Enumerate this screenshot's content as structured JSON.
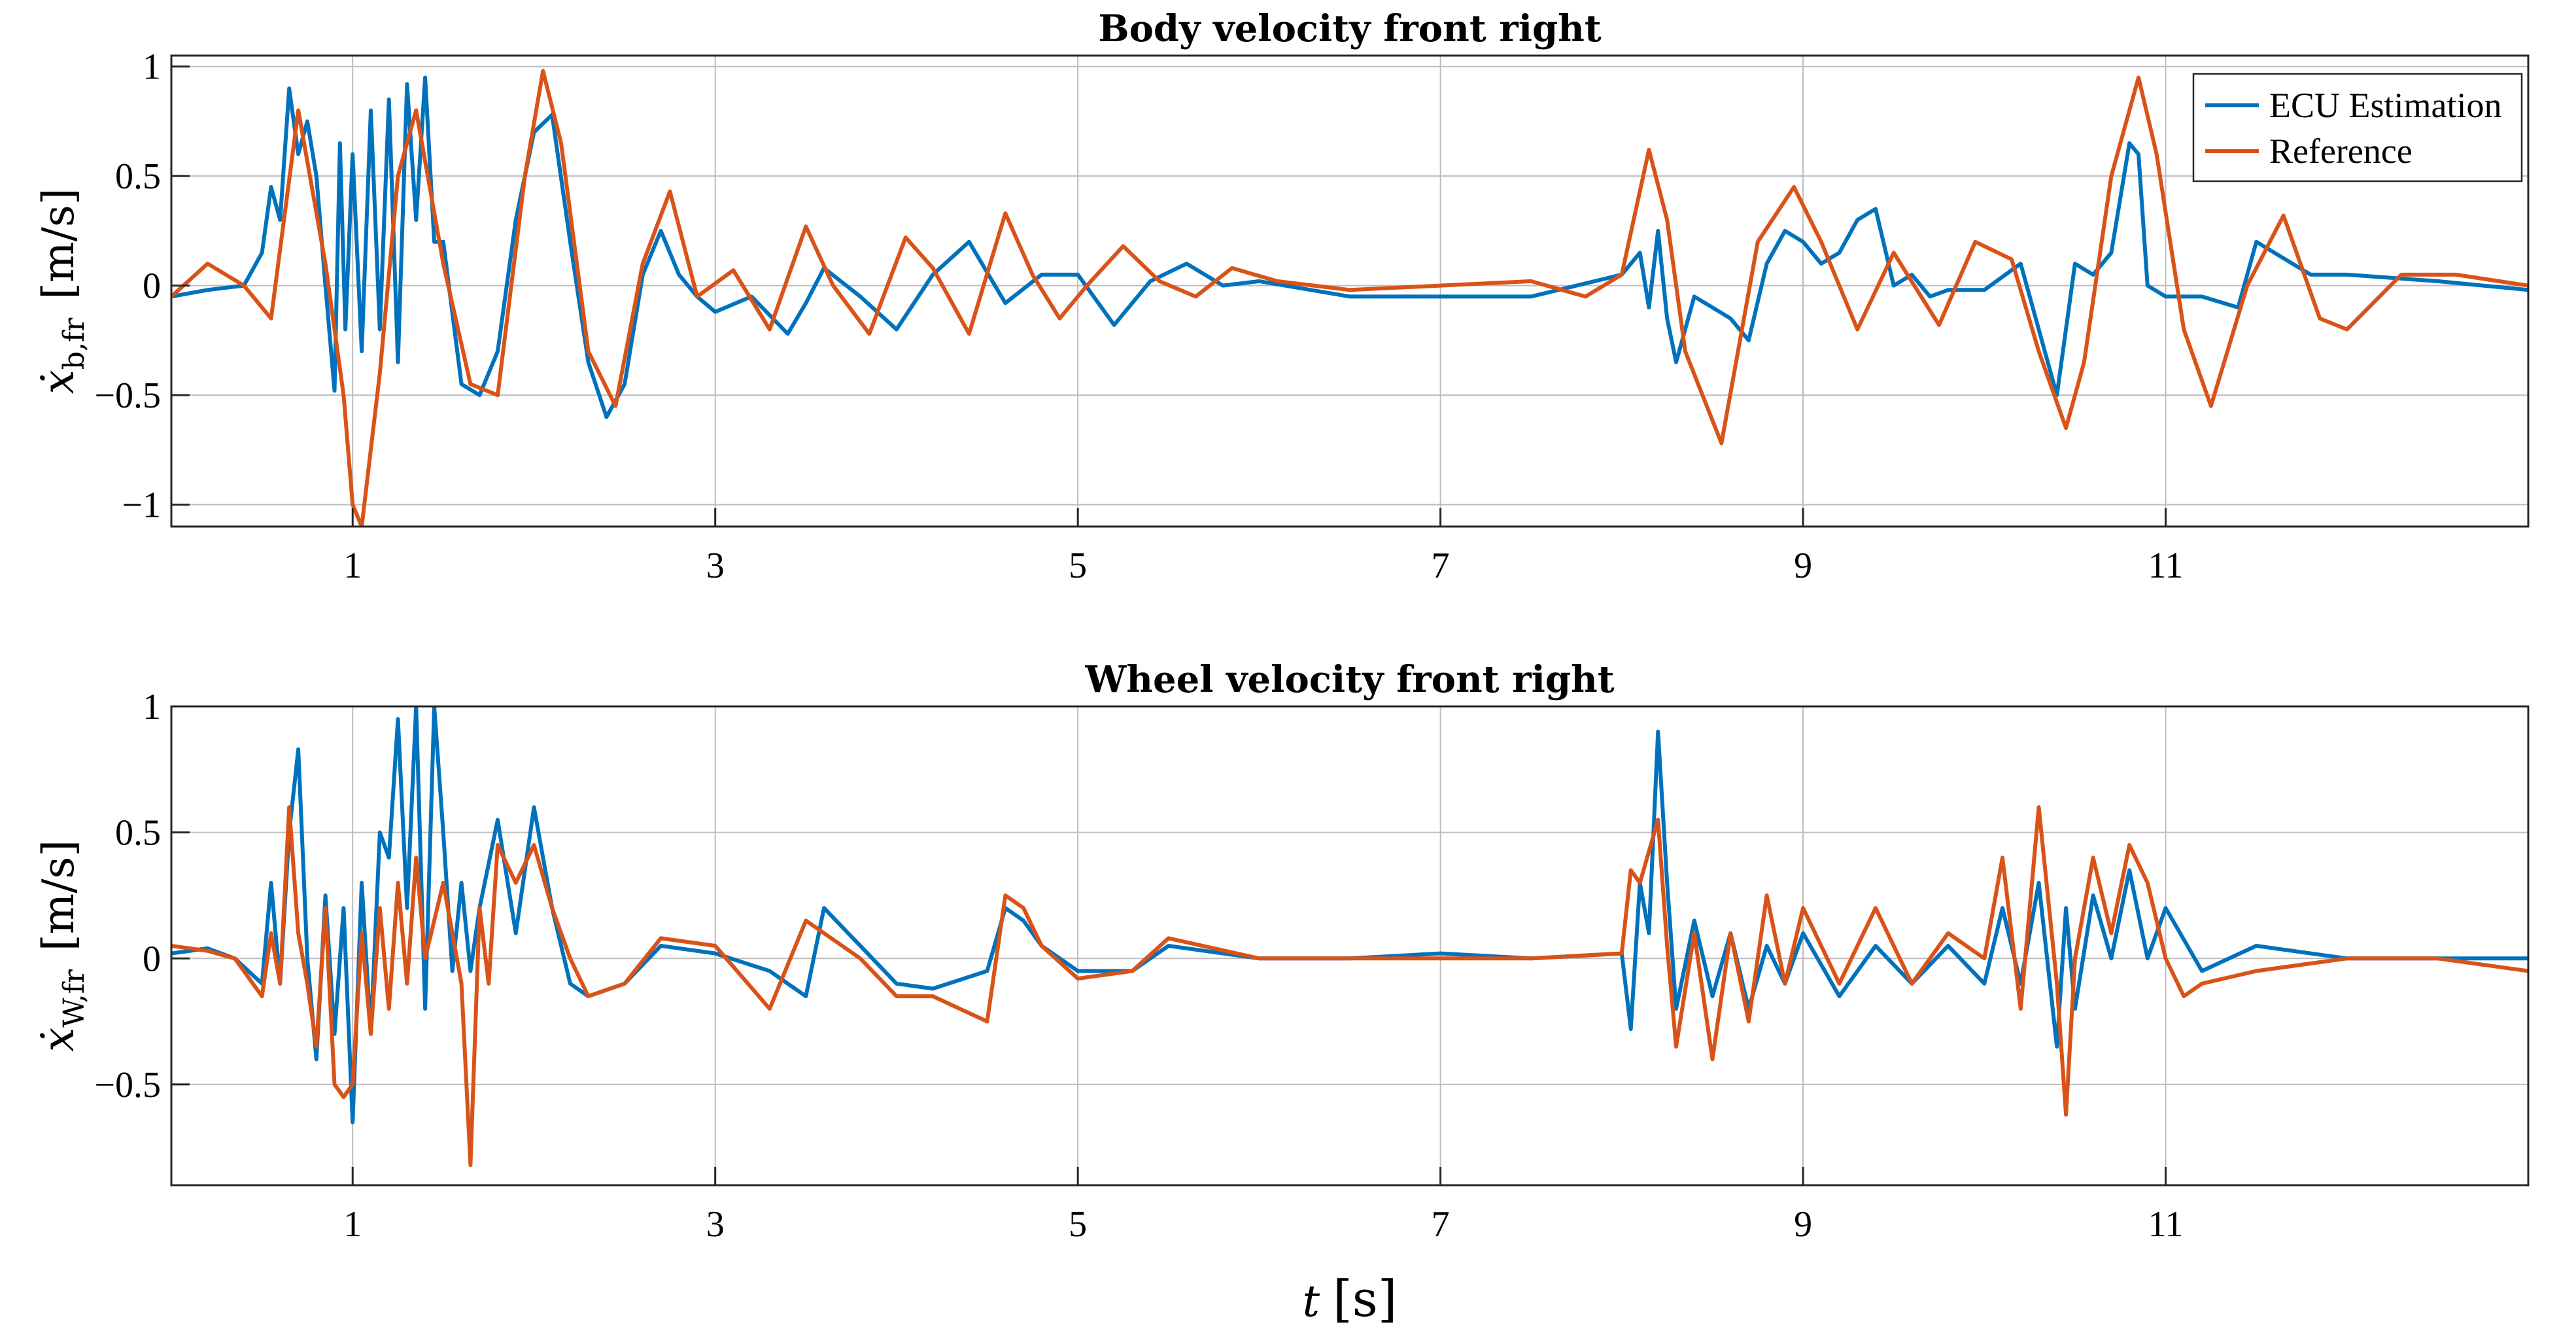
{
  "chart_data": [
    {
      "type": "line",
      "title": "Body velocity front right",
      "xlabel": "",
      "ylabel_main": "ẋ",
      "ylabel_sub": "b,fr",
      "ylabel_unit": "[m/s]",
      "xlim": [
        0,
        13
      ],
      "ylim": [
        -1.1,
        1.05
      ],
      "xticks": [
        1,
        3,
        5,
        7,
        9,
        11
      ],
      "yticks": [
        -1,
        -0.5,
        0,
        0.5,
        1
      ],
      "ytick_labels": [
        "−1",
        "−0.5",
        "0",
        "0.5",
        "1"
      ],
      "grid": true,
      "legend": "top-right",
      "series": [
        {
          "name": "ECU Estimation",
          "color": "#0072BD",
          "x": [
            0,
            0.2,
            0.4,
            0.5,
            0.55,
            0.6,
            0.65,
            0.7,
            0.75,
            0.8,
            0.85,
            0.9,
            0.93,
            0.96,
            1.0,
            1.05,
            1.1,
            1.15,
            1.2,
            1.25,
            1.3,
            1.35,
            1.4,
            1.45,
            1.5,
            1.6,
            1.7,
            1.8,
            1.9,
            2.0,
            2.1,
            2.2,
            2.3,
            2.4,
            2.5,
            2.6,
            2.7,
            2.8,
            2.9,
            3.0,
            3.2,
            3.4,
            3.5,
            3.6,
            3.8,
            4.0,
            4.2,
            4.4,
            4.6,
            4.8,
            5.0,
            5.2,
            5.4,
            5.6,
            5.8,
            6.0,
            6.5,
            7.0,
            7.5,
            8.0,
            8.1,
            8.15,
            8.2,
            8.25,
            8.3,
            8.4,
            8.5,
            8.6,
            8.7,
            8.8,
            8.9,
            9.0,
            9.1,
            9.2,
            9.3,
            9.4,
            9.5,
            9.6,
            9.7,
            9.8,
            10.0,
            10.2,
            10.3,
            10.4,
            10.5,
            10.6,
            10.7,
            10.8,
            10.85,
            10.9,
            11.0,
            11.2,
            11.4,
            11.5,
            11.6,
            11.8,
            12.0,
            12.5,
            13.0
          ],
          "y": [
            -0.05,
            -0.02,
            0.0,
            0.15,
            0.45,
            0.3,
            0.9,
            0.6,
            0.75,
            0.5,
            0.0,
            -0.48,
            0.65,
            -0.2,
            0.6,
            -0.3,
            0.8,
            -0.2,
            0.85,
            -0.35,
            0.92,
            0.3,
            0.95,
            0.2,
            0.2,
            -0.45,
            -0.5,
            -0.3,
            0.3,
            0.7,
            0.78,
            0.2,
            -0.35,
            -0.6,
            -0.45,
            0.05,
            0.25,
            0.05,
            -0.05,
            -0.12,
            -0.05,
            -0.22,
            -0.08,
            0.08,
            -0.05,
            -0.2,
            0.05,
            0.2,
            -0.08,
            0.05,
            0.05,
            -0.18,
            0.02,
            0.1,
            0.0,
            0.02,
            -0.05,
            -0.05,
            -0.05,
            0.05,
            0.15,
            -0.1,
            0.25,
            -0.15,
            -0.35,
            -0.05,
            -0.1,
            -0.15,
            -0.25,
            0.1,
            0.25,
            0.2,
            0.1,
            0.15,
            0.3,
            0.35,
            0.0,
            0.05,
            -0.05,
            -0.02,
            -0.02,
            0.1,
            -0.2,
            -0.5,
            0.1,
            0.05,
            0.15,
            0.65,
            0.6,
            0.0,
            -0.05,
            -0.05,
            -0.1,
            0.2,
            0.15,
            0.05,
            0.05,
            0.02,
            -0.02
          ]
        },
        {
          "name": "Reference",
          "color": "#D95319",
          "x": [
            0,
            0.2,
            0.4,
            0.55,
            0.7,
            0.85,
            0.95,
            1.0,
            1.05,
            1.15,
            1.25,
            1.35,
            1.5,
            1.65,
            1.8,
            1.95,
            2.05,
            2.15,
            2.3,
            2.45,
            2.6,
            2.75,
            2.9,
            3.1,
            3.3,
            3.5,
            3.65,
            3.85,
            4.05,
            4.2,
            4.4,
            4.6,
            4.75,
            4.9,
            5.05,
            5.25,
            5.45,
            5.65,
            5.85,
            6.1,
            6.5,
            7.0,
            7.5,
            7.8,
            8.0,
            8.15,
            8.25,
            8.35,
            8.55,
            8.75,
            8.95,
            9.1,
            9.3,
            9.5,
            9.75,
            9.95,
            10.15,
            10.3,
            10.45,
            10.55,
            10.7,
            10.85,
            10.95,
            11.1,
            11.25,
            11.45,
            11.65,
            11.85,
            12.0,
            12.3,
            12.6,
            13.0
          ],
          "y": [
            -0.05,
            0.1,
            0.0,
            -0.15,
            0.8,
            0.1,
            -0.5,
            -1.0,
            -1.1,
            -0.4,
            0.5,
            0.8,
            0.1,
            -0.45,
            -0.5,
            0.5,
            0.98,
            0.65,
            -0.3,
            -0.55,
            0.1,
            0.43,
            -0.05,
            0.07,
            -0.2,
            0.27,
            0.0,
            -0.22,
            0.22,
            0.08,
            -0.22,
            0.33,
            0.05,
            -0.15,
            0.0,
            0.18,
            0.02,
            -0.05,
            0.08,
            0.02,
            -0.02,
            0.0,
            0.02,
            -0.05,
            0.05,
            0.62,
            0.3,
            -0.3,
            -0.72,
            0.2,
            0.45,
            0.2,
            -0.2,
            0.15,
            -0.18,
            0.2,
            0.12,
            -0.3,
            -0.65,
            -0.35,
            0.5,
            0.95,
            0.6,
            -0.2,
            -0.55,
            0.0,
            0.32,
            -0.15,
            -0.2,
            0.05,
            0.05,
            0.0
          ]
        }
      ]
    },
    {
      "type": "line",
      "title": "Wheel velocity front right",
      "xlabel_main": "t",
      "xlabel_unit": "[s]",
      "ylabel_main": "ẋ",
      "ylabel_sub": "W,fr",
      "ylabel_unit": "[m/s]",
      "xlim": [
        0,
        13
      ],
      "ylim": [
        -0.9,
        1.0
      ],
      "xticks": [
        1,
        3,
        5,
        7,
        9,
        11
      ],
      "yticks": [
        -0.5,
        0,
        0.5,
        1
      ],
      "ytick_labels": [
        "−0.5",
        "0",
        "0.5",
        "1"
      ],
      "grid": true,
      "series": [
        {
          "name": "ECU Estimation",
          "color": "#0072BD",
          "x": [
            0,
            0.2,
            0.35,
            0.5,
            0.55,
            0.6,
            0.65,
            0.7,
            0.75,
            0.8,
            0.85,
            0.9,
            0.95,
            1.0,
            1.05,
            1.1,
            1.15,
            1.2,
            1.25,
            1.3,
            1.35,
            1.4,
            1.45,
            1.5,
            1.55,
            1.6,
            1.65,
            1.7,
            1.8,
            1.9,
            2.0,
            2.1,
            2.2,
            2.3,
            2.5,
            2.7,
            3.0,
            3.3,
            3.5,
            3.6,
            3.8,
            4.0,
            4.2,
            4.5,
            4.6,
            4.7,
            4.8,
            5.0,
            5.3,
            5.5,
            6.0,
            6.5,
            7.0,
            7.5,
            8.0,
            8.05,
            8.1,
            8.15,
            8.2,
            8.25,
            8.3,
            8.4,
            8.5,
            8.6,
            8.7,
            8.8,
            8.9,
            9.0,
            9.2,
            9.4,
            9.6,
            9.8,
            10.0,
            10.1,
            10.2,
            10.3,
            10.4,
            10.45,
            10.5,
            10.6,
            10.7,
            10.8,
            10.9,
            11.0,
            11.2,
            11.5,
            12.0,
            12.5,
            13.0
          ],
          "y": [
            0.02,
            0.04,
            0.0,
            -0.1,
            0.3,
            -0.1,
            0.5,
            0.83,
            0.0,
            -0.4,
            0.25,
            -0.3,
            0.2,
            -0.65,
            0.3,
            -0.3,
            0.5,
            0.4,
            0.95,
            0.2,
            1.0,
            -0.2,
            1.0,
            0.5,
            -0.05,
            0.3,
            -0.05,
            0.2,
            0.55,
            0.1,
            0.6,
            0.2,
            -0.1,
            -0.15,
            -0.1,
            0.05,
            0.02,
            -0.05,
            -0.15,
            0.2,
            0.05,
            -0.1,
            -0.12,
            -0.05,
            0.2,
            0.15,
            0.05,
            -0.05,
            -0.05,
            0.05,
            0.0,
            0.0,
            0.02,
            0.0,
            0.02,
            -0.28,
            0.3,
            0.1,
            0.9,
            0.3,
            -0.2,
            0.15,
            -0.15,
            0.1,
            -0.2,
            0.05,
            -0.1,
            0.1,
            -0.15,
            0.05,
            -0.1,
            0.05,
            -0.1,
            0.2,
            -0.1,
            0.3,
            -0.35,
            0.2,
            -0.2,
            0.25,
            0.0,
            0.35,
            0.0,
            0.2,
            -0.05,
            0.05,
            0.0,
            0.0,
            0.0
          ]
        },
        {
          "name": "Reference",
          "color": "#D95319",
          "x": [
            0,
            0.2,
            0.35,
            0.5,
            0.55,
            0.6,
            0.65,
            0.7,
            0.75,
            0.8,
            0.85,
            0.9,
            0.95,
            1.0,
            1.05,
            1.1,
            1.15,
            1.2,
            1.25,
            1.3,
            1.35,
            1.4,
            1.5,
            1.6,
            1.65,
            1.7,
            1.75,
            1.8,
            1.9,
            2.0,
            2.1,
            2.2,
            2.3,
            2.5,
            2.7,
            3.0,
            3.3,
            3.5,
            3.6,
            3.8,
            4.0,
            4.2,
            4.5,
            4.6,
            4.7,
            4.8,
            5.0,
            5.3,
            5.5,
            6.0,
            6.5,
            7.0,
            7.5,
            8.0,
            8.05,
            8.1,
            8.2,
            8.25,
            8.3,
            8.4,
            8.5,
            8.6,
            8.7,
            8.8,
            8.9,
            9.0,
            9.2,
            9.4,
            9.6,
            9.8,
            10.0,
            10.1,
            10.2,
            10.3,
            10.4,
            10.45,
            10.5,
            10.6,
            10.7,
            10.8,
            10.9,
            11.0,
            11.1,
            11.2,
            11.5,
            12.0,
            12.5,
            13.0
          ],
          "y": [
            0.05,
            0.03,
            0.0,
            -0.15,
            0.1,
            -0.1,
            0.6,
            0.1,
            -0.1,
            -0.35,
            0.2,
            -0.5,
            -0.55,
            -0.5,
            0.1,
            -0.3,
            0.2,
            -0.2,
            0.3,
            -0.1,
            0.4,
            0.0,
            0.3,
            -0.1,
            -0.82,
            0.2,
            -0.1,
            0.45,
            0.3,
            0.45,
            0.2,
            0.0,
            -0.15,
            -0.1,
            0.08,
            0.05,
            -0.2,
            0.15,
            0.1,
            0.0,
            -0.15,
            -0.15,
            -0.25,
            0.25,
            0.2,
            0.05,
            -0.08,
            -0.05,
            0.08,
            0.0,
            0.0,
            0.0,
            0.0,
            0.02,
            0.35,
            0.3,
            0.55,
            0.05,
            -0.35,
            0.1,
            -0.4,
            0.1,
            -0.25,
            0.25,
            -0.1,
            0.2,
            -0.1,
            0.2,
            -0.1,
            0.1,
            0.0,
            0.4,
            -0.2,
            0.6,
            -0.1,
            -0.62,
            0.0,
            0.4,
            0.1,
            0.45,
            0.3,
            0.0,
            -0.15,
            -0.1,
            -0.05,
            0.0,
            0.0,
            -0.05
          ]
        }
      ]
    }
  ]
}
